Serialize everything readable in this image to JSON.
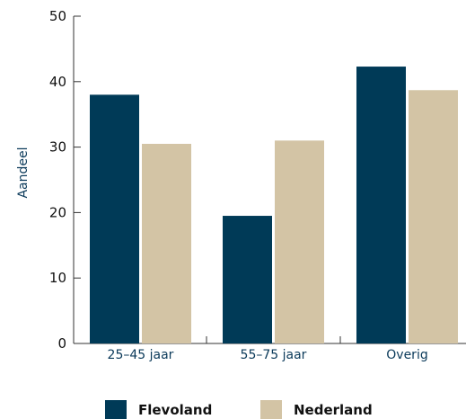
{
  "chart_data": {
    "type": "bar",
    "title": "",
    "xlabel": "",
    "ylabel": "Aandeel",
    "categories": [
      "25–45 jaar",
      "55–75 jaar",
      "Overig"
    ],
    "series": [
      {
        "name": "Flevoland",
        "color": "#003a57",
        "values": [
          38,
          19.5,
          42.3
        ]
      },
      {
        "name": "Nederland",
        "color": "#d3c4a5",
        "values": [
          30.5,
          31,
          38.7
        ]
      }
    ],
    "ylim": [
      0,
      50
    ],
    "yticks": [
      0,
      10,
      20,
      30,
      40,
      50
    ],
    "grid": false,
    "legend_position": "bottom"
  }
}
